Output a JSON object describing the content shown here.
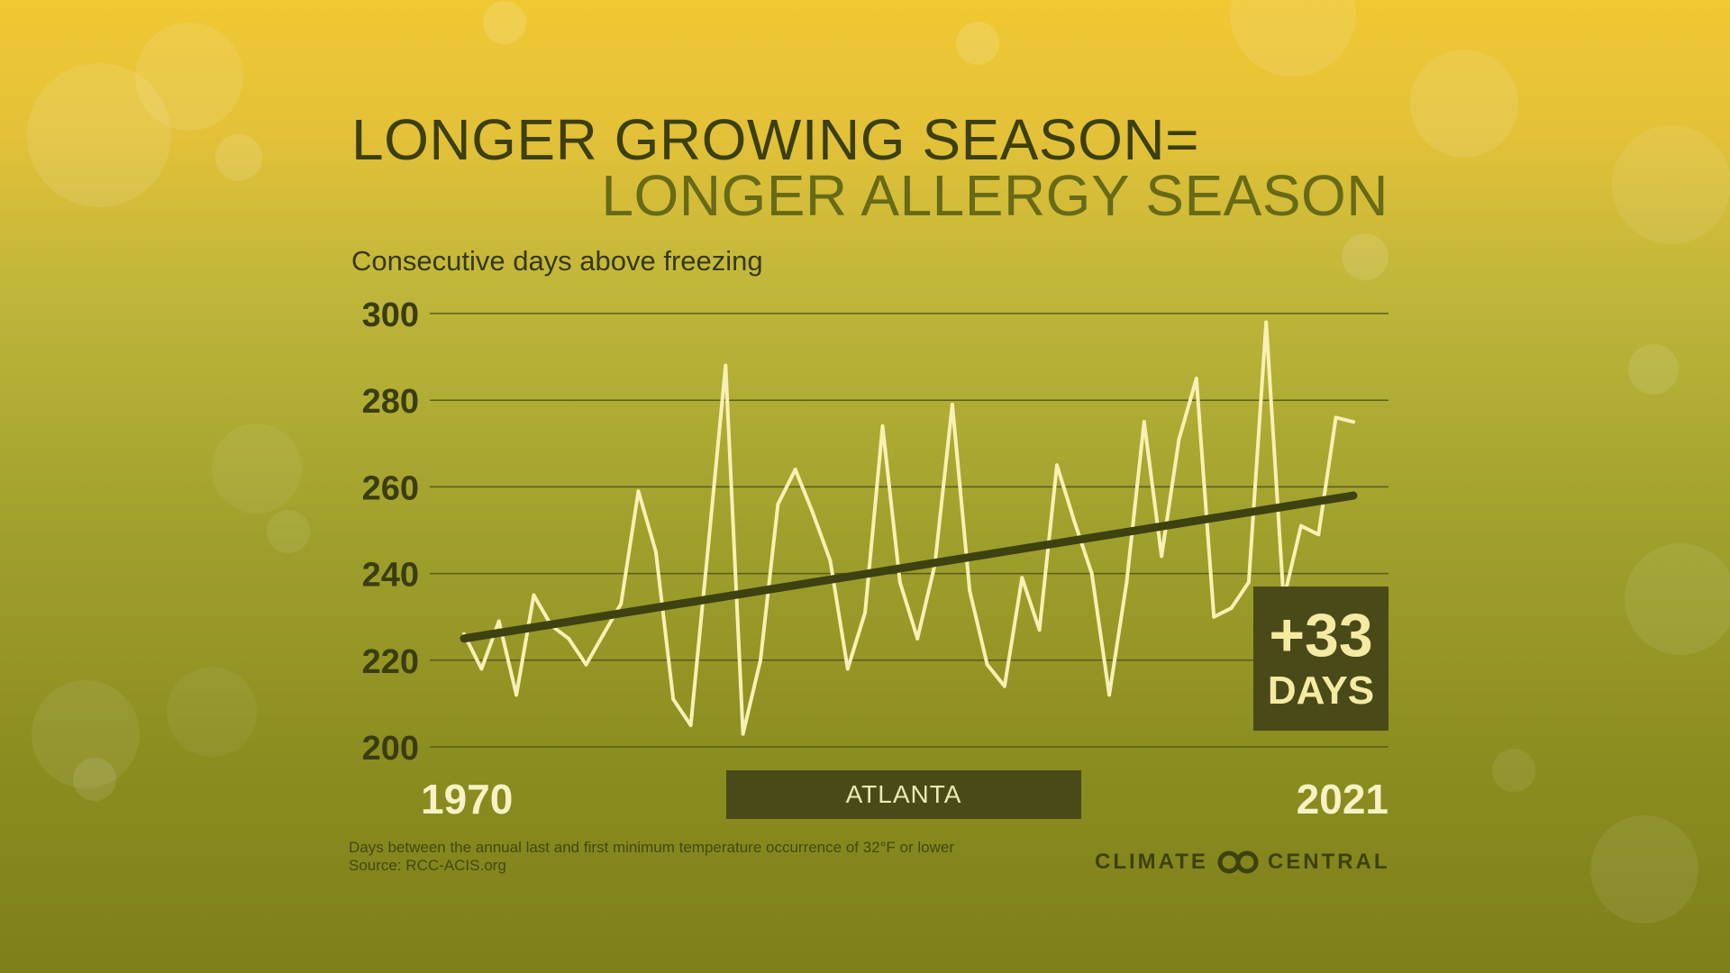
{
  "title_line1": "LONGER GROWING SEASON=",
  "title_line2": "LONGER ALLERGY SEASON",
  "subtitle": "Consecutive days above freezing",
  "badge": {
    "value": "+33",
    "unit": "DAYS"
  },
  "city": "ATLANTA",
  "footnote": {
    "line1": "Days between the annual last and first minimum temperature occurrence of 32°F or lower",
    "line2": "Source: RCC-ACIS.org"
  },
  "logo": {
    "left": "CLIMATE",
    "right": "CENTRAL"
  },
  "colors": {
    "line": "#f8f0b4",
    "trend": "#3e4110",
    "gridline": "#5a5b1c",
    "badge_bg": "#4a4a18"
  },
  "chart_data": {
    "type": "line",
    "x_tick_labels": [
      "1970",
      "2021"
    ],
    "y_ticks": [
      200,
      220,
      240,
      260,
      280,
      300
    ],
    "ylim": [
      200,
      300
    ],
    "xlim": [
      1970,
      2021
    ],
    "grid": true,
    "series": [
      {
        "x": [
          1970,
          1971,
          1972,
          1973,
          1974,
          1975,
          1976,
          1977,
          1978,
          1979,
          1980,
          1981,
          1982,
          1983,
          1984,
          1985,
          1986,
          1987,
          1988,
          1989,
          1990,
          1991,
          1992,
          1993,
          1994,
          1995,
          1996,
          1997,
          1998,
          1999,
          2000,
          2001,
          2002,
          2003,
          2004,
          2005,
          2006,
          2007,
          2008,
          2009,
          2010,
          2011,
          2012,
          2013,
          2014,
          2015,
          2016,
          2017,
          2018,
          2019,
          2020,
          2021
        ],
        "values": [
          226,
          218,
          229,
          212,
          235,
          228,
          225,
          219,
          226,
          233,
          259,
          245,
          211,
          205,
          246,
          288,
          203,
          220,
          256,
          264,
          254,
          243,
          218,
          231,
          274,
          238,
          225,
          242,
          279,
          236,
          219,
          214,
          239,
          227,
          265,
          252,
          240,
          212,
          238,
          275,
          244,
          271,
          285,
          230,
          232,
          238,
          298,
          234,
          251,
          249,
          276,
          275
        ]
      }
    ],
    "trend": {
      "start": [
        1970,
        225
      ],
      "end": [
        2021,
        258
      ]
    }
  }
}
